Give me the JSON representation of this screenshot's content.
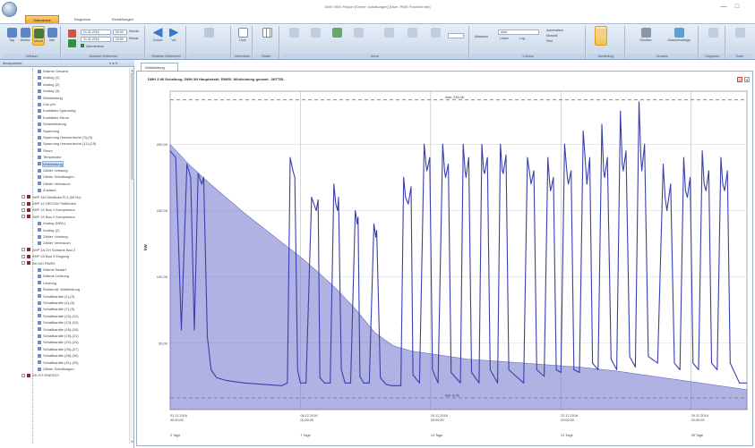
{
  "window": {
    "title": "DMH 3000 Report [Server: schaltungen] [User: RWE Fachrechner]",
    "minimize": "—",
    "maximize": "□"
  },
  "ribbon": {
    "tabs": [
      {
        "label": "Datenbank",
        "active": true
      },
      {
        "label": "Diagramm",
        "active": false
      },
      {
        "label": "Einstellungen",
        "active": false
      }
    ],
    "groups": {
      "zeitraum": {
        "label": "Zeitraum",
        "buttons": [
          "Tag",
          "Woche",
          "Monat",
          "Jahr"
        ]
      },
      "von_bis": {
        "label": "Absolute Zeitbereich",
        "from_date": "01.01.2016",
        "from_time": "00:00",
        "to_date": "31.01.2016",
        "to_time": "23:59",
        "checkbox_label": "Übernehmen",
        "stunde_label": "Stunde",
        "minute_label": "Minute"
      },
      "zeitbereich": {
        "label": "Relativer Zeitbereich",
        "buttons": [
          "Zurück",
          "Vor"
        ]
      },
      "liniendicke": {
        "label": "Liniendicke",
        "button": "Linie"
      },
      "raster": {
        "label": "Raster",
        "button": "Raster"
      },
      "kurve": {
        "label": "Kurve"
      },
      "stuetzpunkte": {
        "label": "Y-Achse",
        "field_label": "Maximum",
        "value": "Auto",
        "options": [
          "Linear",
          "Log"
        ],
        "radio": [
          "Automatisch",
          "Manuell",
          "Fest"
        ]
      },
      "darstellung": {
        "label": "Darstellung"
      },
      "drucken": {
        "label": "Drucken",
        "buttons": [
          "Drucken",
          "Zwischenablage"
        ]
      },
      "diagramm": {
        "label": "Diagramm",
        "button": "Diagramm"
      },
      "ende": {
        "label": "Ende",
        "button": "Ende"
      }
    }
  },
  "sidebar": {
    "header": "Messpunkte",
    "controls": "▾ ◂ ✕",
    "items": [
      {
        "label": "Wärme Gesamt",
        "indent": 2,
        "icon": "node",
        "selected": false
      },
      {
        "label": "Analog (1)",
        "indent": 2,
        "icon": "node",
        "selected": false
      },
      {
        "label": "Analog (2)",
        "indent": 2,
        "icon": "node",
        "selected": false
      },
      {
        "label": "Analog (3)",
        "indent": 2,
        "icon": "node",
        "selected": false
      },
      {
        "label": "Wirkleistung",
        "indent": 2,
        "icon": "node",
        "selected": false
      },
      {
        "label": "Cos phi",
        "indent": 2,
        "icon": "node",
        "selected": false
      },
      {
        "label": "Kontakter Spannung",
        "indent": 2,
        "icon": "node",
        "selected": false
      },
      {
        "label": "Kontakter Strom",
        "indent": 2,
        "icon": "node",
        "selected": false
      },
      {
        "label": "Scheinleistung",
        "indent": 2,
        "icon": "node",
        "selected": false
      },
      {
        "label": "Spannung",
        "indent": 2,
        "icon": "node",
        "selected": false
      },
      {
        "label": "Spannung Harmonische (3)-(9)",
        "indent": 2,
        "icon": "node",
        "selected": false
      },
      {
        "label": "Spannung Harmonische (11)-(15)",
        "indent": 2,
        "icon": "node",
        "selected": false
      },
      {
        "label": "Strom",
        "indent": 2,
        "icon": "node",
        "selected": false
      },
      {
        "label": "Temperatur",
        "indent": 2,
        "icon": "node",
        "selected": false
      },
      {
        "label": "Wirkleistung",
        "indent": 2,
        "icon": "node",
        "selected": true
      },
      {
        "label": "Zähler Leistung",
        "indent": 2,
        "icon": "node",
        "selected": false
      },
      {
        "label": "Zähler Schaltungen",
        "indent": 2,
        "icon": "node",
        "selected": false
      },
      {
        "label": "Zähler Verbrauch",
        "indent": 2,
        "icon": "node",
        "selected": false
      },
      {
        "label": "Zustand",
        "indent": 2,
        "icon": "node",
        "selected": false
      },
      {
        "label": "BHP 1M Gebläuse R.3 (50 Hz)",
        "indent": 1,
        "icon": "device",
        "selected": false
      },
      {
        "label": "BHP 12 HECOM Tiefkühlen",
        "indent": 1,
        "icon": "device",
        "selected": false
      },
      {
        "label": "BHP 14 Bau 1 Kompressor",
        "indent": 1,
        "icon": "device",
        "selected": false
      },
      {
        "label": "BHP 15 Bau 2 Kompressor",
        "indent": 1,
        "icon": "device",
        "selected": false
      },
      {
        "label": "Analog (NWL)",
        "indent": 2,
        "icon": "node",
        "selected": false
      },
      {
        "label": "Analog (2)",
        "indent": 2,
        "icon": "node",
        "selected": false
      },
      {
        "label": "Zähler Leistung",
        "indent": 2,
        "icon": "node",
        "selected": false
      },
      {
        "label": "Zähler Verbrauch",
        "indent": 2,
        "icon": "node",
        "selected": false
      },
      {
        "label": "BHP 2A DH Schrank Bau 2",
        "indent": 1,
        "icon": "device",
        "selected": false
      },
      {
        "label": "BHP 28 Bau 3 Eingang",
        "indent": 1,
        "icon": "device",
        "selected": false
      },
      {
        "label": "BH-NO RWE0",
        "indent": 1,
        "icon": "device",
        "selected": false
      },
      {
        "label": "Wärme Bedarf",
        "indent": 2,
        "icon": "node",
        "selected": false
      },
      {
        "label": "Wärme Leistung",
        "indent": 2,
        "icon": "node",
        "selected": false
      },
      {
        "label": "Leistung",
        "indent": 2,
        "icon": "node",
        "selected": false
      },
      {
        "label": "Rollierruff. Wirkleistung",
        "indent": 2,
        "icon": "node",
        "selected": false
      },
      {
        "label": "Schaltkanäle (1)-(3)",
        "indent": 2,
        "icon": "node",
        "selected": false
      },
      {
        "label": "Schaltkanäle (4)-(6)",
        "indent": 2,
        "icon": "node",
        "selected": false
      },
      {
        "label": "Schaltkanäle (7)-(9)",
        "indent": 2,
        "icon": "node",
        "selected": false
      },
      {
        "label": "Schaltkanäle (10)-(12)",
        "indent": 2,
        "icon": "node",
        "selected": false
      },
      {
        "label": "Schaltkanäle (13)-(15)",
        "indent": 2,
        "icon": "node",
        "selected": false
      },
      {
        "label": "Schaltkanäle (16)-(18)",
        "indent": 2,
        "icon": "node",
        "selected": false
      },
      {
        "label": "Schaltkanäle (19)-(21)",
        "indent": 2,
        "icon": "node",
        "selected": false
      },
      {
        "label": "Schaltkanäle (22)-(24)",
        "indent": 2,
        "icon": "node",
        "selected": false
      },
      {
        "label": "Schaltkanäle (25)-(27)",
        "indent": 2,
        "icon": "node",
        "selected": false
      },
      {
        "label": "Schaltkanäle (28)-(30)",
        "indent": 2,
        "icon": "node",
        "selected": false
      },
      {
        "label": "Schaltkanäle (31)-(33)",
        "indent": 2,
        "icon": "node",
        "selected": false
      },
      {
        "label": "Zähler Schaltungen",
        "indent": 2,
        "icon": "node",
        "selected": false
      },
      {
        "label": "BH-FG ENERGY",
        "indent": 1,
        "icon": "device",
        "selected": false
      }
    ]
  },
  "document": {
    "tab": "Wirkleistung",
    "chart_title": "DMH 3 IM Schaltung, DMH 3H Hauptstrahl: RWE0, Wirkleistung gesamt - MITTEL"
  },
  "chart_data": {
    "type": "line",
    "ylabel": "kW",
    "ylim": [
      0,
      240
    ],
    "y_ticks": [
      "50,00",
      "100,00",
      "150,00",
      "200,00"
    ],
    "x_ticks": [
      {
        "date": "01.12.2016",
        "time": "00:00:00",
        "span": "0 Tage"
      },
      {
        "date": "08.12.2016",
        "time": "00:00:00",
        "span": "7 Tage"
      },
      {
        "date": "15.12.2016",
        "time": "00:00:00",
        "span": "14 Tage"
      },
      {
        "date": "22.12.2016",
        "time": "00:00:00",
        "span": "21 Tage"
      },
      {
        "date": "29.12.2016",
        "time": "00:00:00",
        "span": "28 Tage"
      }
    ],
    "xlim_days": [
      0,
      31
    ],
    "reference_lines": [
      {
        "label": "max: 233,46",
        "value": 233.46
      },
      {
        "label": "min: 8,75",
        "value": 8.75
      }
    ],
    "series": [
      {
        "color": "#3a3fae",
        "x": [
          0,
          0.3,
          0.6,
          0.9,
          1.1,
          1.3,
          1.5,
          1.7,
          1.8,
          2.0,
          2.2,
          2.5,
          3.0,
          3.5,
          4.0,
          5.0,
          6.0,
          6.3,
          6.45,
          6.6,
          6.7,
          6.85,
          7.0,
          7.3,
          7.6,
          7.85,
          7.95,
          8.05,
          8.3,
          8.6,
          8.8,
          8.9,
          9.0,
          9.05,
          9.2,
          9.4,
          9.7,
          9.95,
          10.05,
          10.1,
          10.2,
          10.4,
          10.7,
          10.95,
          11.05,
          11.1,
          11.3,
          11.6,
          11.9,
          12.4,
          12.55,
          12.65,
          12.8,
          12.95,
          13.05,
          13.4,
          13.65,
          13.75,
          13.8,
          13.95,
          14.1,
          14.4,
          14.65,
          14.75,
          14.8,
          14.95,
          15.1,
          15.6,
          15.75,
          15.85,
          15.9,
          16.05,
          16.2,
          16.6,
          16.75,
          16.85,
          16.9,
          17.05,
          17.2,
          17.6,
          17.75,
          17.85,
          17.9,
          18.05,
          18.2,
          19.0,
          19.2,
          19.35,
          19.4,
          19.55,
          19.7,
          20.1,
          20.3,
          20.4,
          20.45,
          20.6,
          20.75,
          21.0,
          21.2,
          21.35,
          21.4,
          21.55,
          21.7,
          22.0,
          22.2,
          22.35,
          22.4,
          22.55,
          22.7,
          23.0,
          23.2,
          23.3,
          23.35,
          23.5,
          23.7,
          24.0,
          24.2,
          24.3,
          24.35,
          24.5,
          24.7,
          25.0,
          25.2,
          25.3,
          25.35,
          25.5,
          25.7,
          26.2,
          26.5,
          26.6,
          26.7,
          26.9,
          27.1,
          27.4,
          27.6,
          27.7,
          27.8,
          27.95,
          28.1,
          28.4,
          28.6,
          28.7,
          28.8,
          28.95,
          29.1,
          29.4,
          29.6,
          29.7,
          29.8,
          29.95,
          30.1,
          30.6,
          31.0
        ],
        "y": [
          195,
          190,
          60,
          185,
          175,
          60,
          178,
          170,
          175,
          55,
          30,
          24,
          22,
          21,
          20,
          19,
          18,
          20,
          190,
          180,
          175,
          30,
          20,
          20,
          160,
          150,
          158,
          24,
          20,
          20,
          170,
          155,
          150,
          160,
          30,
          20,
          20,
          150,
          140,
          145,
          25,
          20,
          20,
          140,
          130,
          135,
          24,
          19,
          18,
          18,
          175,
          160,
          155,
          168,
          26,
          20,
          200,
          185,
          180,
          190,
          30,
          20,
          200,
          180,
          175,
          185,
          28,
          20,
          200,
          180,
          175,
          190,
          28,
          20,
          200,
          180,
          178,
          190,
          30,
          20,
          200,
          180,
          178,
          192,
          30,
          20,
          190,
          175,
          170,
          180,
          30,
          25,
          190,
          170,
          165,
          175,
          30,
          28,
          200,
          175,
          170,
          180,
          30,
          28,
          210,
          180,
          170,
          190,
          35,
          30,
          215,
          180,
          175,
          190,
          38,
          30,
          225,
          185,
          180,
          195,
          40,
          32,
          232,
          190,
          180,
          200,
          40,
          35,
          185,
          160,
          150,
          170,
          35,
          30,
          190,
          165,
          160,
          175,
          35,
          30,
          195,
          170,
          165,
          180,
          35,
          30,
          190,
          170,
          165,
          180,
          35,
          20,
          20
        ]
      },
      {
        "color": "#6a6ec4",
        "x": [
          0,
          1,
          2,
          3,
          4,
          5,
          6,
          7,
          8,
          9,
          10,
          11,
          12,
          13,
          14,
          15,
          16,
          18,
          20,
          22,
          24,
          26,
          28,
          31
        ],
        "y": [
          200,
          185,
          172,
          160,
          148,
          137,
          126,
          115,
          103,
          90,
          75,
          58,
          48,
          44,
          42,
          40,
          38,
          36,
          34,
          32,
          29,
          25,
          21,
          15
        ]
      }
    ]
  },
  "colors": {
    "accent": "#f5a623",
    "series_line": "#3a3fae",
    "area_fill": "#7a7fcf",
    "ribbon_bg": "#d6e2f1"
  }
}
